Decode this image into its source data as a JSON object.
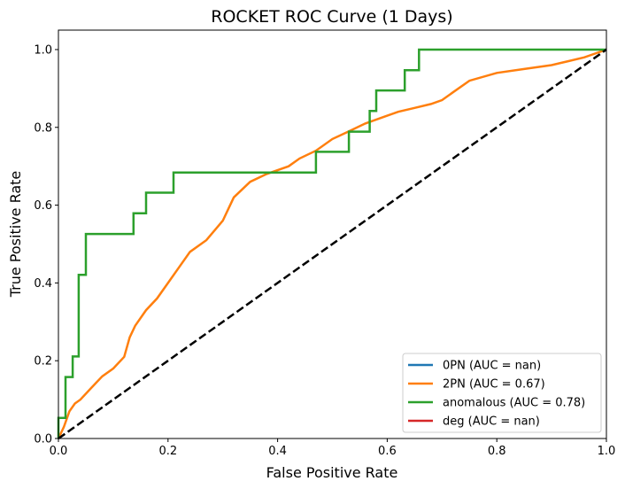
{
  "chart_data": {
    "type": "line",
    "title": "ROCKET ROC Curve (1 Days)",
    "xlabel": "False Positive Rate",
    "ylabel": "True Positive Rate",
    "xlim": [
      0.0,
      1.0
    ],
    "ylim": [
      0.0,
      1.05
    ],
    "xticks": [
      "0.0",
      "0.2",
      "0.4",
      "0.6",
      "0.8",
      "1.0"
    ],
    "yticks": [
      "0.0",
      "0.2",
      "0.4",
      "0.6",
      "0.8",
      "1.0"
    ],
    "grid": false,
    "legend_position": "lower right",
    "diagonal": {
      "style": "dashed",
      "color": "#000000",
      "x": [
        0,
        1
      ],
      "y": [
        0,
        1
      ]
    },
    "series": [
      {
        "name": "0PN (AUC = nan)",
        "color": "#1f77b4",
        "x": [],
        "y": []
      },
      {
        "name": "2PN (AUC = 0.67)",
        "color": "#ff7f0e",
        "x": [
          0,
          0.01,
          0.02,
          0.03,
          0.04,
          0.06,
          0.08,
          0.1,
          0.12,
          0.13,
          0.14,
          0.16,
          0.18,
          0.2,
          0.22,
          0.24,
          0.27,
          0.3,
          0.32,
          0.35,
          0.38,
          0.4,
          0.42,
          0.44,
          0.47,
          0.5,
          0.53,
          0.56,
          0.6,
          0.62,
          0.65,
          0.68,
          0.7,
          0.72,
          0.75,
          0.8,
          0.85,
          0.9,
          0.93,
          0.96,
          1.0
        ],
        "y": [
          0,
          0.03,
          0.07,
          0.09,
          0.1,
          0.13,
          0.16,
          0.18,
          0.21,
          0.26,
          0.29,
          0.33,
          0.36,
          0.4,
          0.44,
          0.48,
          0.51,
          0.56,
          0.62,
          0.66,
          0.68,
          0.69,
          0.7,
          0.72,
          0.74,
          0.77,
          0.79,
          0.81,
          0.83,
          0.84,
          0.85,
          0.86,
          0.87,
          0.89,
          0.92,
          0.94,
          0.95,
          0.96,
          0.97,
          0.98,
          1.0
        ]
      },
      {
        "name": "anomalous (AUC = 0.78)",
        "color": "#2ca02c",
        "x": [
          0,
          0,
          0.013,
          0.013,
          0.026,
          0.026,
          0.037,
          0.037,
          0.05,
          0.05,
          0.137,
          0.137,
          0.16,
          0.16,
          0.21,
          0.21,
          0.47,
          0.47,
          0.53,
          0.53,
          0.568,
          0.568,
          0.58,
          0.58,
          0.632,
          0.632,
          0.658,
          0.658,
          1.0
        ],
        "y": [
          0,
          0.053,
          0.053,
          0.158,
          0.158,
          0.211,
          0.211,
          0.421,
          0.421,
          0.526,
          0.526,
          0.579,
          0.579,
          0.632,
          0.632,
          0.684,
          0.684,
          0.737,
          0.737,
          0.789,
          0.789,
          0.842,
          0.842,
          0.895,
          0.895,
          0.947,
          0.947,
          1.0,
          1.0
        ]
      },
      {
        "name": "deg (AUC = nan)",
        "color": "#d62728",
        "x": [],
        "y": []
      }
    ]
  }
}
